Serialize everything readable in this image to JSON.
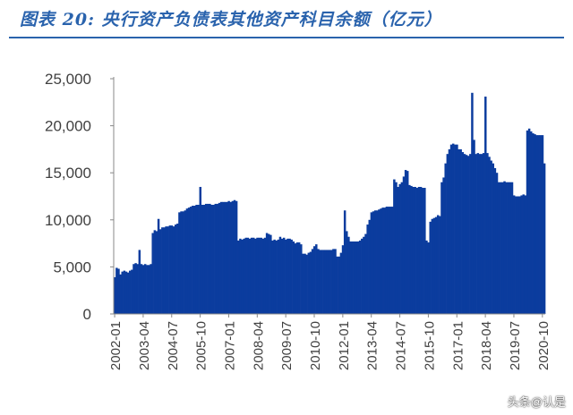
{
  "header": {
    "title": "图表 20:  央行资产负债表其他资产科目余额（亿元）"
  },
  "watermark": "头条@认是",
  "chart_data": {
    "type": "bar",
    "title": "图表 20:  央行资产负债表其他资产科目余额（亿元）",
    "ylim": [
      0,
      25000
    ],
    "yticks": [
      "0",
      "5,000",
      "10,000",
      "15,000",
      "20,000",
      "25,000"
    ],
    "ytick_values": [
      0,
      5000,
      10000,
      15000,
      20000,
      25000
    ],
    "xtick_labels": [
      "2002-01",
      "2003-04",
      "2004-07",
      "2005-10",
      "2007-01",
      "2008-04",
      "2009-07",
      "2010-10",
      "2012-01",
      "2013-04",
      "2014-07",
      "2015-10",
      "2017-01",
      "2018-04",
      "2019-07",
      "2020-10"
    ],
    "xtick_index": [
      0,
      15,
      30,
      45,
      60,
      75,
      90,
      105,
      120,
      135,
      150,
      165,
      180,
      195,
      210,
      225
    ],
    "bar_color": "#0b3c9e",
    "grid": false,
    "legend": "none",
    "series": [
      {
        "values": [
          3900,
          4900,
          4800,
          4200,
          4500,
          4600,
          4500,
          4400,
          4600,
          4700,
          5300,
          5400,
          5300,
          6800,
          5300,
          5200,
          5300,
          5200,
          5200,
          5300,
          8600,
          8900,
          8800,
          10100,
          9000,
          9200,
          9200,
          9300,
          9300,
          9400,
          9400,
          9300,
          9500,
          9600,
          10800,
          10900,
          10900,
          11000,
          11200,
          11300,
          11400,
          11500,
          11500,
          11600,
          11600,
          13500,
          11600,
          11600,
          11700,
          11700,
          11700,
          11600,
          11600,
          11700,
          11700,
          11800,
          11900,
          11900,
          11900,
          11900,
          12000,
          11900,
          12000,
          12100,
          12000,
          7800,
          8000,
          7900,
          8000,
          8100,
          8100,
          8000,
          8100,
          8100,
          8000,
          8100,
          8100,
          8100,
          8000,
          8100,
          8600,
          8500,
          8400,
          7800,
          7900,
          7800,
          7900,
          8200,
          8000,
          8100,
          7900,
          8000,
          8000,
          7900,
          7700,
          7500,
          7600,
          7600,
          7400,
          6400,
          6400,
          6300,
          6500,
          6600,
          6900,
          7200,
          7400,
          6900,
          6800,
          6800,
          6800,
          6800,
          6800,
          6800,
          6800,
          6900,
          6900,
          6100,
          6100,
          6500,
          7300,
          11000,
          8800,
          8200,
          7700,
          7700,
          7700,
          7700,
          7700,
          7800,
          8000,
          8200,
          8500,
          9500,
          10000,
          10800,
          10900,
          11000,
          11000,
          11100,
          11200,
          11300,
          11300,
          11400,
          11400,
          11400,
          11400,
          14300,
          14000,
          13500,
          13800,
          14000,
          14600,
          15300,
          15200,
          13700,
          13600,
          13500,
          13500,
          13400,
          13500,
          13500,
          13400,
          13400,
          7800,
          7600,
          9800,
          10100,
          10200,
          10300,
          10500,
          10400,
          14000,
          14500,
          16000,
          17000,
          17500,
          18000,
          18100,
          18000,
          18000,
          17500,
          17500,
          17200,
          17000,
          16900,
          16800,
          17000,
          23500,
          18500,
          17000,
          17100,
          17000,
          17000,
          17100,
          23100,
          17100,
          16700,
          16300,
          16000,
          15500,
          15000,
          14000,
          14000,
          14000,
          14100,
          14000,
          14000,
          14000,
          14000,
          12600,
          12500,
          12500,
          12500,
          12600,
          12700,
          12600,
          19500,
          19700,
          19400,
          19200,
          19100,
          19000,
          19000,
          19000,
          19000,
          16000
        ]
      }
    ]
  }
}
